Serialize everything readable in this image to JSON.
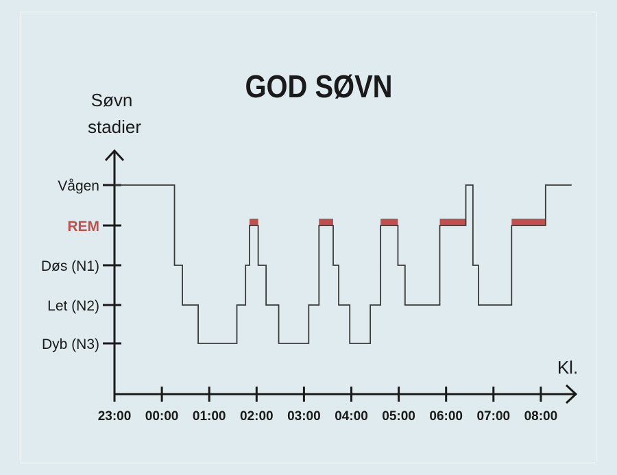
{
  "chart_data": {
    "type": "line",
    "subtype": "step",
    "title": "GOD SØVN",
    "ylabel_lines": [
      "Søvn",
      "stadier"
    ],
    "xlabel": "Kl.",
    "y_categories": [
      "Vågen",
      "REM",
      "Døs (N1)",
      "Let (N2)",
      "Dyb (N3)"
    ],
    "x_ticks": [
      "23:00",
      "00:00",
      "01:00",
      "02:00",
      "03:00",
      "04:00",
      "05:00",
      "06:00",
      "07:00",
      "08:00"
    ],
    "grid": false,
    "colors": {
      "line": "#3a3a3a",
      "rem_highlight": "#c0504d",
      "rem_label": "#c0504d",
      "axis": "#1a1a1a",
      "background": "#dfebee"
    },
    "series": [
      {
        "steps": [
          {
            "t": "23:00",
            "stage": "Vågen"
          },
          {
            "t": "00:16",
            "stage": "Døs (N1)"
          },
          {
            "t": "00:26",
            "stage": "Let (N2)"
          },
          {
            "t": "00:46",
            "stage": "Dyb (N3)"
          },
          {
            "t": "01:35",
            "stage": "Let (N2)"
          },
          {
            "t": "01:46",
            "stage": "Døs (N1)"
          },
          {
            "t": "01:51",
            "stage": "REM"
          },
          {
            "t": "02:02",
            "stage": "Døs (N1)"
          },
          {
            "t": "02:12",
            "stage": "Let (N2)"
          },
          {
            "t": "02:28",
            "stage": "Dyb (N3)"
          },
          {
            "t": "03:06",
            "stage": "Let (N2)"
          },
          {
            "t": "03:19",
            "stage": "REM"
          },
          {
            "t": "03:37",
            "stage": "Døs (N1)"
          },
          {
            "t": "03:44",
            "stage": "Let (N2)"
          },
          {
            "t": "03:58",
            "stage": "Dyb (N3)"
          },
          {
            "t": "04:24",
            "stage": "Let (N2)"
          },
          {
            "t": "04:37",
            "stage": "REM"
          },
          {
            "t": "04:59",
            "stage": "Døs (N1)"
          },
          {
            "t": "05:08",
            "stage": "Let (N2)"
          },
          {
            "t": "05:52",
            "stage": "REM"
          },
          {
            "t": "06:25",
            "stage": "Vågen"
          },
          {
            "t": "06:34",
            "stage": "Døs (N1)"
          },
          {
            "t": "06:41",
            "stage": "Let (N2)"
          },
          {
            "t": "07:23",
            "stage": "REM"
          },
          {
            "t": "08:06",
            "stage": "Vågen"
          }
        ],
        "end": "08:39"
      }
    ]
  }
}
